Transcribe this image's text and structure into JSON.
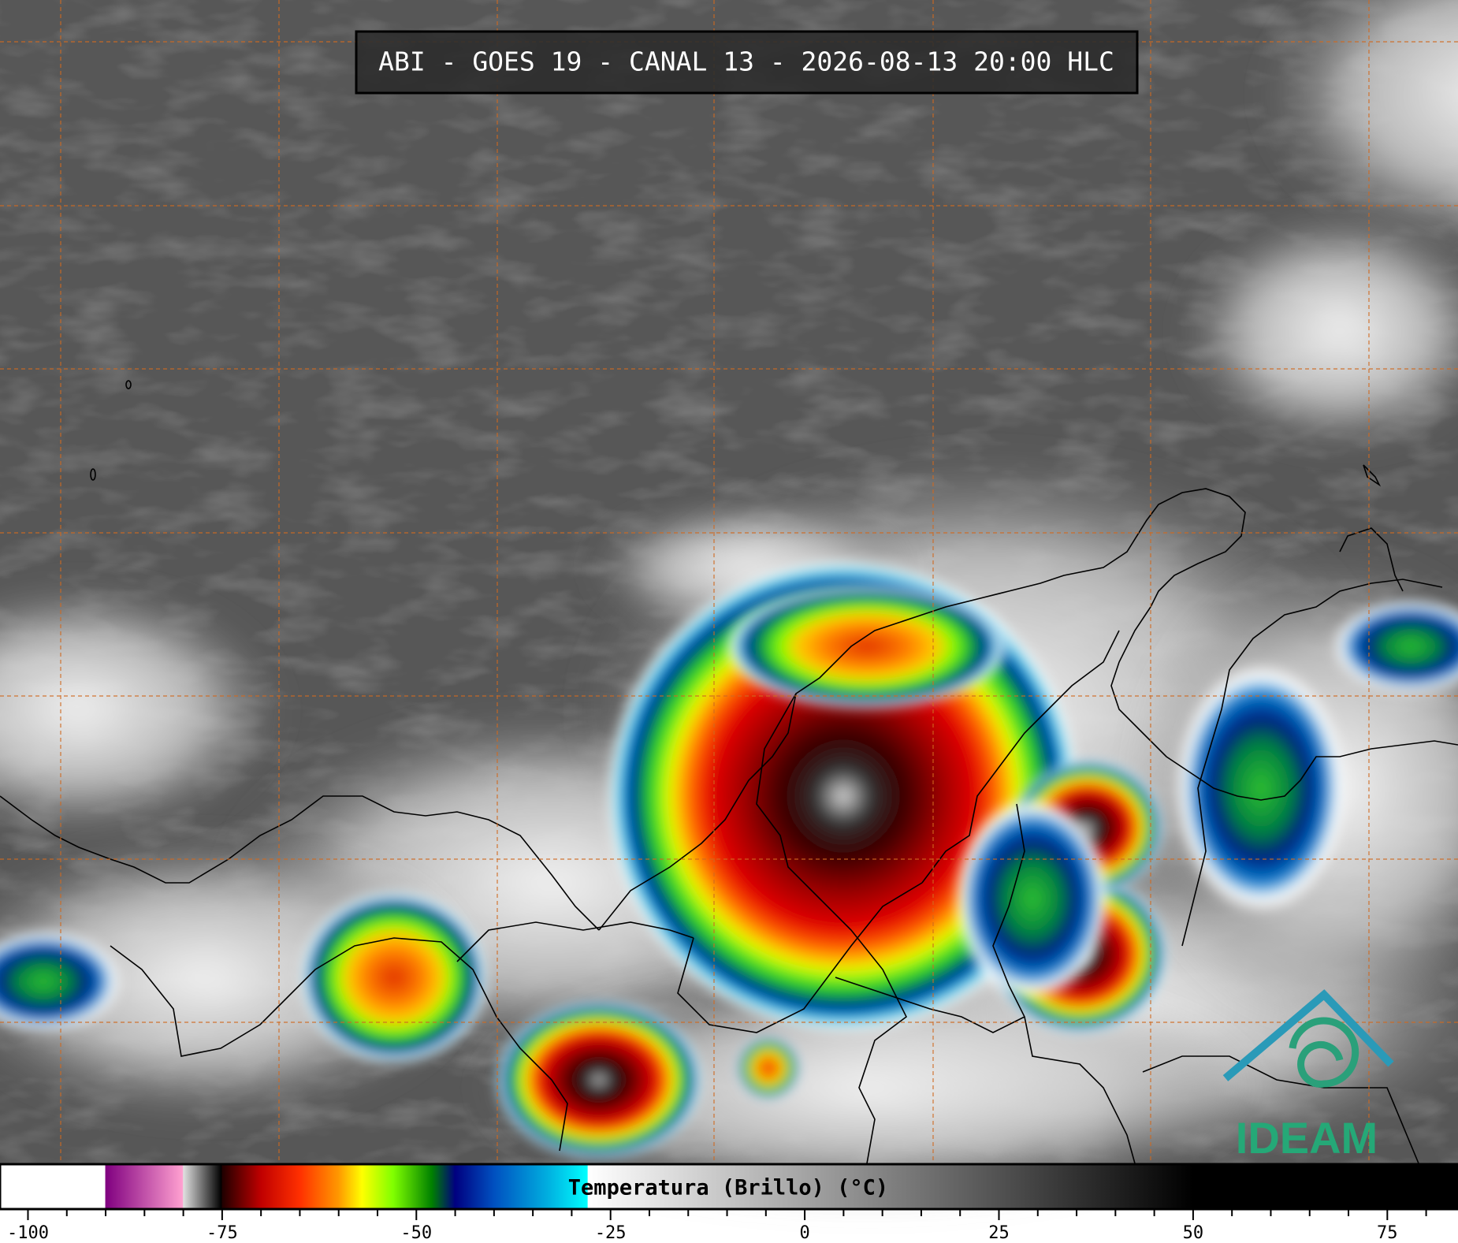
{
  "header": {
    "title": "ABI - GOES 19 - CANAL 13 - 2026-08-13 20:00 HLC"
  },
  "logo": {
    "text": "IDEAM"
  },
  "colorbar": {
    "label": "Temperatura (Brillo) (°C)",
    "lim": [
      -103.6,
      84.1
    ],
    "ticks": [
      -100,
      -75,
      -50,
      -25,
      0,
      25,
      50,
      75
    ],
    "minor_ticks": [
      -95,
      -90,
      -85,
      -80,
      -70,
      -65,
      -60,
      -55,
      -45,
      -40,
      -35,
      -30,
      -20,
      -15,
      -10,
      -5,
      5,
      10,
      15,
      20,
      30,
      35,
      40,
      45,
      55,
      60,
      65,
      70,
      80
    ],
    "stops": [
      [
        -103.6,
        "#ffffff"
      ],
      [
        -90.1,
        "#ffffff"
      ],
      [
        -90,
        "#800080"
      ],
      [
        -80.1,
        "#ffa0d0"
      ],
      [
        -80,
        "#e0e0e0"
      ],
      [
        -75.1,
        "#000000"
      ],
      [
        -75,
        "#200000"
      ],
      [
        -70,
        "#c00000"
      ],
      [
        -65,
        "#ff3000"
      ],
      [
        -60,
        "#ff9900"
      ],
      [
        -57,
        "#ffff00"
      ],
      [
        -53,
        "#80ff00"
      ],
      [
        -48,
        "#008000"
      ],
      [
        -45,
        "#000080"
      ],
      [
        -40,
        "#0050c0"
      ],
      [
        -33,
        "#00b0e0"
      ],
      [
        -28,
        "#00ffff"
      ],
      [
        -27.9,
        "#ffffff"
      ],
      [
        50,
        "#000000"
      ],
      [
        84.1,
        "#000000"
      ]
    ]
  }
}
